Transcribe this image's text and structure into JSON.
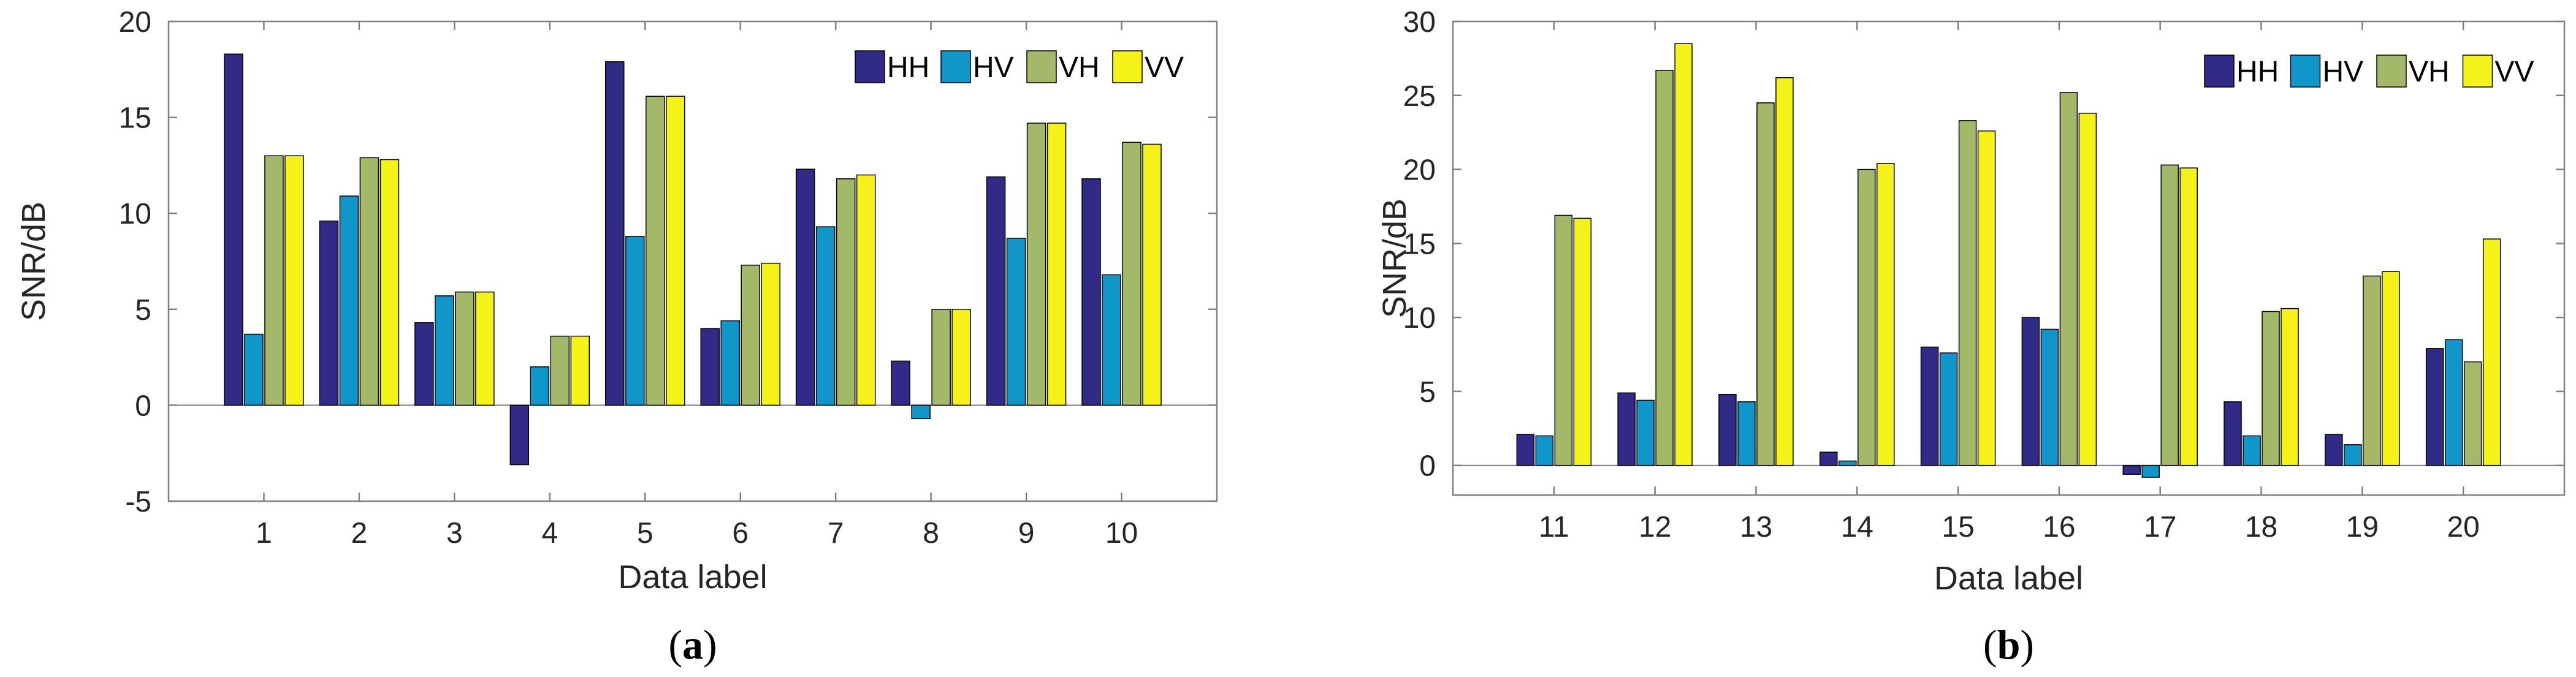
{
  "colors": {
    "HH": "#312a86",
    "HV": "#1096c8",
    "VH": "#a4b86a",
    "VV": "#f5f21a",
    "axis": "#808080",
    "text": "#262626"
  },
  "chart_data": [
    {
      "panel": "a",
      "type": "bar",
      "title": "",
      "caption": {
        "open": "(",
        "letter": "a",
        "close": ")"
      },
      "xlabel": "Data label",
      "ylabel": "SNR/dB",
      "ylim": [
        -5,
        20
      ],
      "yticks": [
        -5,
        0,
        5,
        10,
        15,
        20
      ],
      "ytick_labels": [
        "-5",
        "0",
        "5",
        "10",
        "15",
        "20"
      ],
      "grid": false,
      "legend_position": "top-right",
      "categories": [
        "1",
        "2",
        "3",
        "4",
        "5",
        "6",
        "7",
        "8",
        "9",
        "10"
      ],
      "series": [
        {
          "name": "HH",
          "values": [
            18.3,
            9.6,
            4.3,
            -3.1,
            17.9,
            4.0,
            12.3,
            2.3,
            11.9,
            11.8
          ]
        },
        {
          "name": "HV",
          "values": [
            3.7,
            10.9,
            5.7,
            2.0,
            8.8,
            4.4,
            9.3,
            -0.7,
            8.7,
            6.8
          ]
        },
        {
          "name": "VH",
          "values": [
            13.0,
            12.9,
            5.9,
            3.6,
            16.1,
            7.3,
            11.8,
            5.0,
            14.7,
            13.7
          ]
        },
        {
          "name": "VV",
          "values": [
            13.0,
            12.8,
            5.9,
            3.6,
            16.1,
            7.4,
            12.0,
            5.0,
            14.7,
            13.6
          ]
        }
      ]
    },
    {
      "panel": "b",
      "type": "bar",
      "title": "",
      "caption": {
        "open": "(",
        "letter": "b",
        "close": ")"
      },
      "xlabel": "Data label",
      "ylabel": "SNR/dB",
      "ylim": [
        -2,
        30
      ],
      "yticks": [
        0,
        5,
        10,
        15,
        20,
        25,
        30
      ],
      "ytick_labels": [
        "0",
        "5",
        "10",
        "15",
        "20",
        "25",
        "30"
      ],
      "grid": false,
      "legend_position": "top-right",
      "categories": [
        "11",
        "12",
        "13",
        "14",
        "15",
        "16",
        "17",
        "18",
        "19",
        "20"
      ],
      "series": [
        {
          "name": "HH",
          "values": [
            2.1,
            4.9,
            4.8,
            0.9,
            8.0,
            10.0,
            -0.6,
            4.3,
            2.1,
            7.9
          ]
        },
        {
          "name": "HV",
          "values": [
            2.0,
            4.4,
            4.3,
            0.3,
            7.6,
            9.2,
            -0.8,
            2.0,
            1.4,
            8.5
          ]
        },
        {
          "name": "VH",
          "values": [
            16.9,
            26.7,
            24.5,
            20.0,
            23.3,
            25.2,
            20.3,
            10.4,
            12.8,
            7.0
          ]
        },
        {
          "name": "VV",
          "values": [
            16.7,
            28.5,
            26.2,
            20.4,
            22.6,
            23.8,
            20.1,
            10.6,
            13.1,
            15.3
          ]
        }
      ]
    }
  ]
}
